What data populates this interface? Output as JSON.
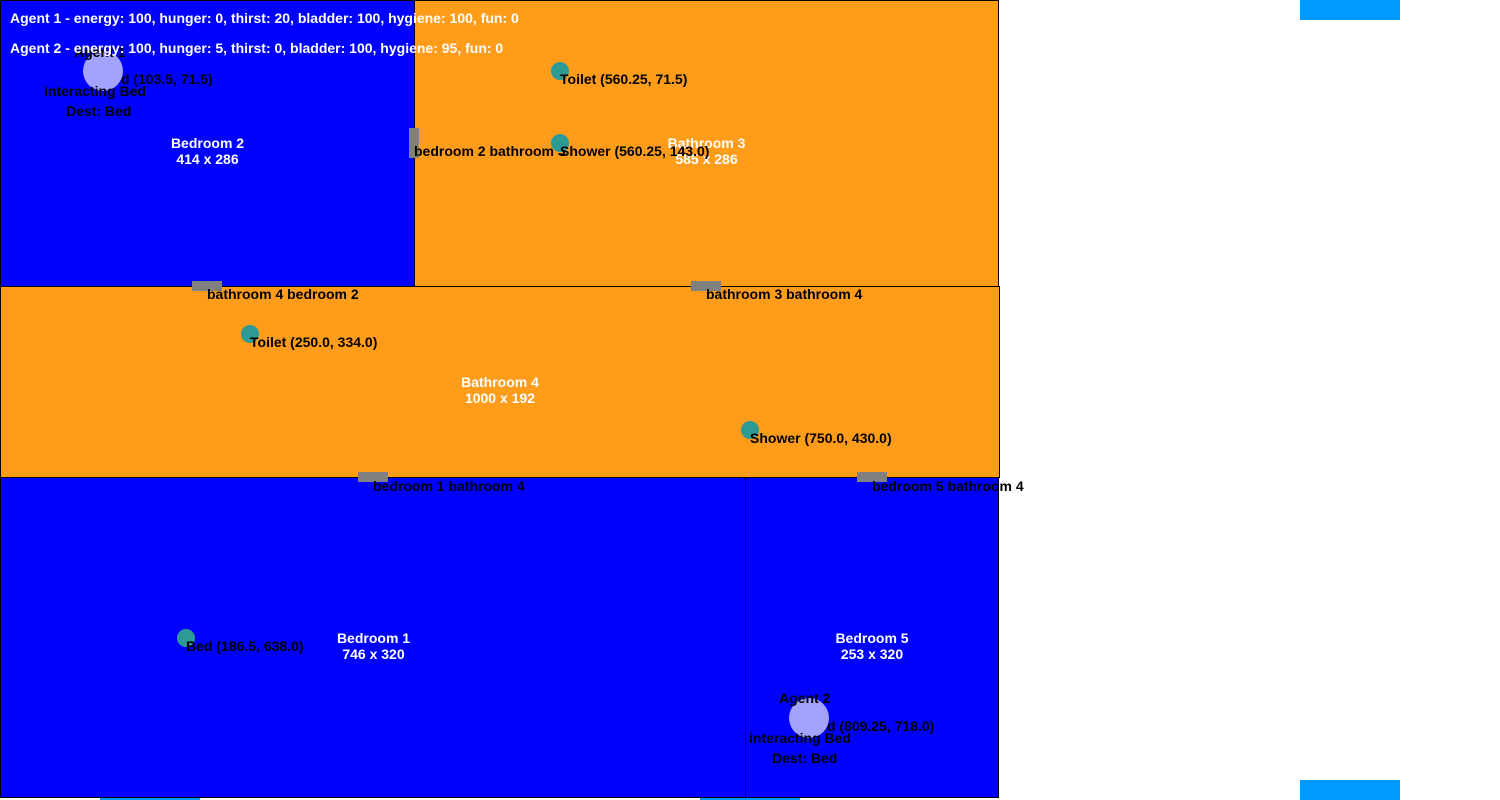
{
  "colors": {
    "bedroom": "#0000ff",
    "bathroom": "#ff9c1a",
    "marker": "#0099ff",
    "door": "#808080",
    "object": "#2e9a95",
    "agent": "#a3a3ff"
  },
  "rooms": {
    "bedroom2": {
      "name": "Bedroom 2",
      "size": "414 x 286"
    },
    "bathroom3": {
      "name": "Bathroom 3",
      "size": "585 x 286"
    },
    "bathroom4": {
      "name": "Bathroom 4",
      "size": "1000 x 192"
    },
    "bedroom1": {
      "name": "Bedroom 1",
      "size": "746 x 320"
    },
    "bedroom5": {
      "name": "Bedroom 5",
      "size": "253 x 320"
    }
  },
  "doors": {
    "b2_b3": "bedroom 2 bathroom 3",
    "b4_b2": "bathroom 4 bedroom 2",
    "b3_b4": "bathroom 3 bathroom 4",
    "b1_b4": "bedroom 1 bathroom 4",
    "b5_b4": "bedroom 5 bathroom 4"
  },
  "objects": {
    "bed_bedroom2": "Bed (103.5, 71.5)",
    "toilet_bathroom3": "Toilet (560.25, 71.5)",
    "shower_bathroom3": "Shower (560.25, 143.0)",
    "toilet_bathroom4": "Toilet (250.0, 334.0)",
    "shower_bathroom4": "Shower (750.0, 430.0)",
    "bed_bedroom1": "Bed (186.5, 638.0)",
    "bed_bedroom5": "Bed (809.25, 718.0)"
  },
  "agents": {
    "agent1": {
      "name": "Agent 1",
      "action": "interacting Bed",
      "dest": "Dest: Bed"
    },
    "agent2": {
      "name": "Agent 2",
      "action": "interacting Bed",
      "dest": "Dest: Bed"
    }
  },
  "status": {
    "agent1": "Agent 1 - energy: 100, hunger: 0, thirst: 20, bladder: 100, hygiene: 100, fun: 0",
    "agent2": "Agent 2 - energy: 100, hunger: 5, thirst: 0, bladder: 100, hygiene: 95, fun: 0"
  }
}
